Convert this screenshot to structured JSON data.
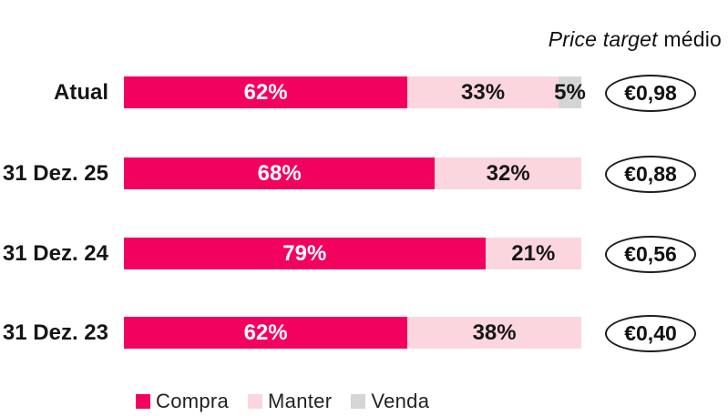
{
  "header": {
    "title_italic": "Price target",
    "title_regular": " médio"
  },
  "colors": {
    "compra": "#F3015F",
    "manter": "#FCD6DF",
    "venda": "#D5D5D5",
    "bar_label_on_dark": "#FFFFFF",
    "bar_label_on_light": "#161616",
    "text": "#161616"
  },
  "chart_data": {
    "type": "bar",
    "orientation": "horizontal",
    "stacked": true,
    "title": "Price target médio",
    "categories": [
      "Atual",
      "31 Dez. 25",
      "31 Dez. 24",
      "31 Dez. 23"
    ],
    "series": [
      {
        "name": "Compra",
        "color": "#F3015F",
        "label_color": "#FFFFFF",
        "values": [
          62,
          68,
          79,
          62
        ]
      },
      {
        "name": "Manter",
        "color": "#FCD6DF",
        "label_color": "#161616",
        "values": [
          33,
          32,
          21,
          38
        ]
      },
      {
        "name": "Venda",
        "color": "#D5D5D5",
        "label_color": "#161616",
        "values": [
          5,
          0,
          0,
          0
        ]
      }
    ],
    "value_suffix": "%",
    "price_targets": [
      "€0,98",
      "€0,88",
      "€0,56",
      "€0,40"
    ],
    "legend": [
      "Compra",
      "Manter",
      "Venda"
    ],
    "legend_position": "bottom",
    "xlim": [
      0,
      100
    ],
    "grid": false
  }
}
